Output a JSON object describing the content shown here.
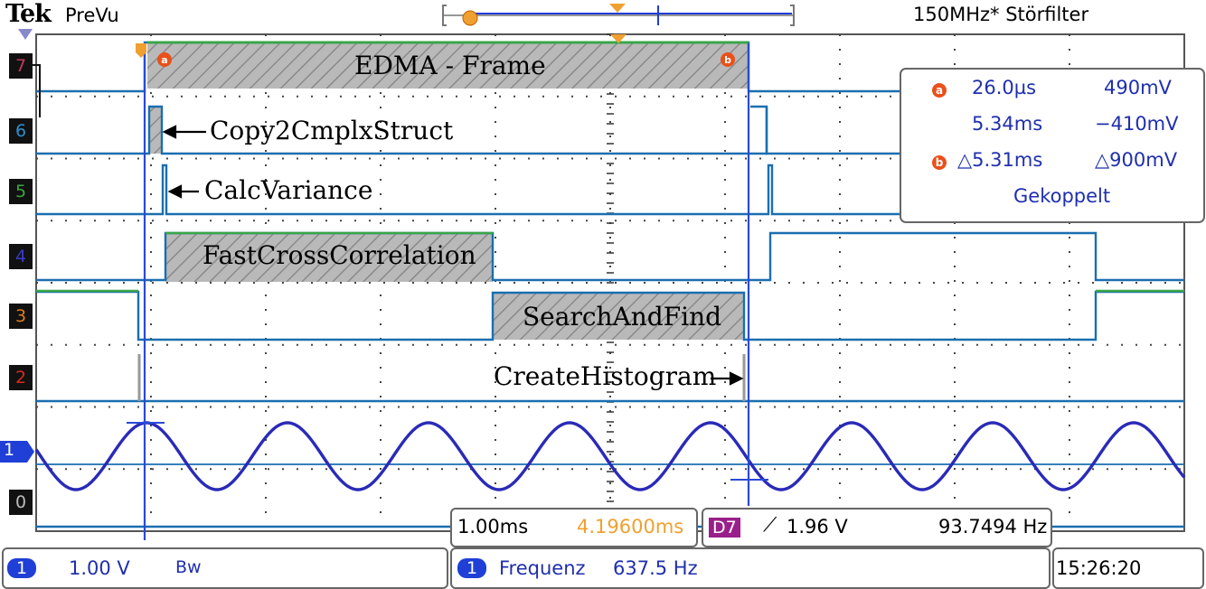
{
  "header": {
    "brand": "Tek",
    "mode": "PreVu",
    "filter": "150MHz* Störfilter"
  },
  "channels": [
    "7",
    "6",
    "5",
    "4",
    "3",
    "2",
    "1",
    "0"
  ],
  "channel_colors": {
    "7": "#c13a5e",
    "6": "#2d8fd0",
    "5": "#3aa640",
    "4": "#3a3ad0",
    "3": "#e07b16",
    "2": "#d62a1e",
    "1": "#1f3fd6",
    "0": "#888888"
  },
  "annotations": {
    "edma": "EDMA - Frame",
    "copy": "Copy2CmplxStruct",
    "calc": "CalcVariance",
    "fastcross": "FastCrossCorrelation",
    "search": "SearchAndFind",
    "histogram": "CreateHistogram"
  },
  "measurements": {
    "a_time": "26.0µs",
    "a_volt": "490mV",
    "b_time": "5.34ms",
    "b_volt": "−410mV",
    "delta_time": "△5.31ms",
    "delta_volt": "△900mV",
    "mode": "Gekoppelt",
    "cursor_a": "a",
    "cursor_b": "b"
  },
  "bottom": {
    "timebase": "1.00ms",
    "position": "4.19600ms",
    "trigger_src": "D7",
    "trigger_level": "1.96 V",
    "trigger_freq": "93.7494 Hz",
    "ch1_badge": "1",
    "ch1_scale": "1.00 V",
    "ch1_bw": "Bw",
    "meas_badge": "1",
    "meas_label": "Frequenz",
    "meas_value": "637.5 Hz",
    "clock": "15:26:20"
  },
  "ch1_marker": "1"
}
